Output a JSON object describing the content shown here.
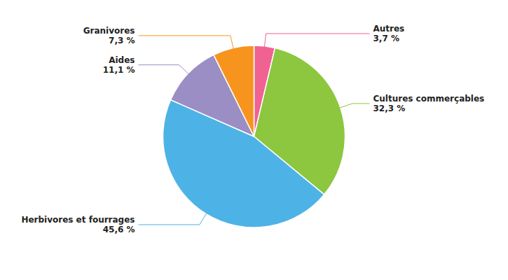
{
  "chart_data": {
    "type": "pie",
    "categories": [
      "Autres",
      "Cultures commerçables",
      "Herbivores et fourrages",
      "Aides",
      "Granivores"
    ],
    "values": [
      3.7,
      32.3,
      45.6,
      11.1,
      7.3
    ],
    "value_labels": [
      "3,7 %",
      "32,3 %",
      "45,6 %",
      "11,1 %",
      "7,3 %"
    ],
    "colors": [
      "#f06292",
      "#8dc63f",
      "#4db3e6",
      "#9b8ec4",
      "#f7941d"
    ],
    "data_labels": true
  }
}
